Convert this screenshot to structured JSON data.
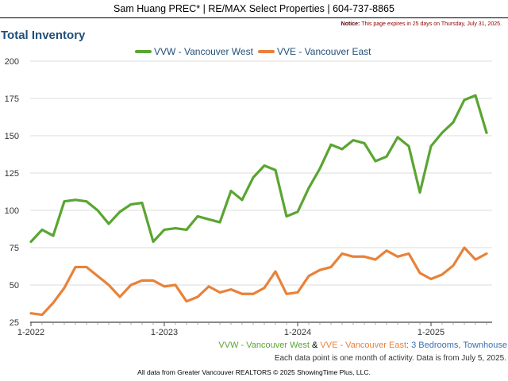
{
  "header": {
    "title": "Sam Huang PREC* | RE/MAX Select Properties | 604-737-8865"
  },
  "notice": {
    "label": "Notice:",
    "text": "This page expires in 25 days on Thursday, July 31, 2025."
  },
  "footer": {
    "series1": "VVW - Vancouver West",
    "amp": " & ",
    "series2": "VVE - Vancouver East",
    "rest": ": 3 Bedrooms, Townhouse",
    "note": "Each data point is one month of activity. Data is from July 5, 2025.",
    "credit": "All data from Greater Vancouver REALTORS © 2025 ShowingTime Plus, LLC."
  },
  "colors": {
    "green": "#5aa532",
    "orange": "#e8823a",
    "title": "#1f4e79"
  },
  "chart_data": {
    "type": "line",
    "title": "Total Inventory",
    "xlabel": "",
    "ylabel": "",
    "ylim": [
      25,
      200
    ],
    "y_ticks": [
      25,
      50,
      75,
      100,
      125,
      150,
      175,
      200
    ],
    "x_ticks": [
      "1-2022",
      "1-2023",
      "1-2024",
      "1-2025"
    ],
    "legend_position": "top",
    "grid": "horizontal",
    "x_start": "2022-01",
    "series": [
      {
        "name": "VVW - Vancouver West",
        "color": "#5aa532",
        "values": [
          79,
          87,
          83,
          106,
          107,
          106,
          100,
          91,
          99,
          104,
          105,
          79,
          87,
          88,
          87,
          96,
          94,
          92,
          113,
          107,
          122,
          130,
          127,
          96,
          99,
          115,
          128,
          144,
          141,
          147,
          145,
          133,
          136,
          149,
          143,
          112,
          143,
          152,
          159,
          174,
          177,
          152
        ]
      },
      {
        "name": "VVE - Vancouver East",
        "color": "#e8823a",
        "values": [
          31,
          30,
          38,
          48,
          62,
          62,
          56,
          50,
          42,
          50,
          53,
          53,
          49,
          50,
          39,
          42,
          49,
          45,
          47,
          44,
          44,
          48,
          59,
          44,
          45,
          56,
          60,
          62,
          71,
          69,
          69,
          67,
          73,
          69,
          71,
          58,
          54,
          57,
          63,
          75,
          67,
          71
        ]
      }
    ]
  }
}
